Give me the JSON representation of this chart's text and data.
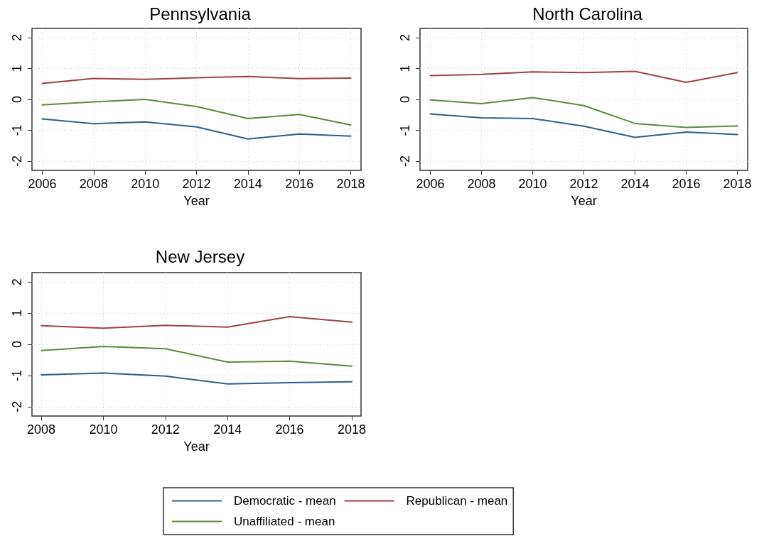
{
  "chart_data": [
    {
      "type": "line",
      "title": "Pennsylvania",
      "xlabel": "Year",
      "x": [
        2006,
        2008,
        2010,
        2012,
        2014,
        2016,
        2018
      ],
      "xlim": [
        2005.6,
        2018.4
      ],
      "xticks": [
        2006,
        2008,
        2010,
        2012,
        2014,
        2016,
        2018
      ],
      "ylim": [
        -2.3,
        2.3
      ],
      "yticks": [
        -2,
        -1,
        0,
        1,
        2
      ],
      "grid": true,
      "legend": false,
      "marker": "none",
      "line_style": "solid",
      "series": [
        {
          "color": "#2e5f8a",
          "values": [
            -0.63,
            -0.79,
            -0.73,
            -0.89,
            -1.28,
            -1.12,
            -1.19
          ]
        },
        {
          "color": "#a0404a",
          "values": [
            0.52,
            0.68,
            0.65,
            0.7,
            0.74,
            0.67,
            0.69
          ]
        },
        {
          "color": "#5b8a3c",
          "values": [
            -0.18,
            -0.08,
            0,
            -0.23,
            -0.62,
            -0.49,
            -0.83
          ]
        }
      ]
    },
    {
      "type": "line",
      "title": "North Carolina",
      "xlabel": "Year",
      "x": [
        2006,
        2008,
        2010,
        2012,
        2014,
        2016,
        2018
      ],
      "xlim": [
        2005.6,
        2018.4
      ],
      "xticks": [
        2006,
        2008,
        2010,
        2012,
        2014,
        2016,
        2018
      ],
      "ylim": [
        -2.3,
        2.3
      ],
      "yticks": [
        -2,
        -1,
        0,
        1,
        2
      ],
      "grid": true,
      "legend": false,
      "marker": "none",
      "line_style": "solid",
      "series": [
        {
          "color": "#2e5f8a",
          "values": [
            -0.47,
            -0.6,
            -0.62,
            -0.87,
            -1.23,
            -1.06,
            -1.14
          ]
        },
        {
          "color": "#a0404a",
          "values": [
            0.77,
            0.81,
            0.89,
            0.87,
            0.91,
            0.55,
            0.87
          ]
        },
        {
          "color": "#5b8a3c",
          "values": [
            -0.02,
            -0.14,
            0.06,
            -0.2,
            -0.78,
            -0.91,
            -0.86
          ]
        }
      ]
    },
    {
      "type": "line",
      "title": "New Jersey",
      "xlabel": "Year",
      "x": [
        2008,
        2010,
        2012,
        2014,
        2016,
        2018
      ],
      "xlim": [
        2007.7,
        2018.3
      ],
      "xticks": [
        2008,
        2010,
        2012,
        2014,
        2016,
        2018
      ],
      "ylim": [
        -2.3,
        2.3
      ],
      "yticks": [
        -2,
        -1,
        0,
        1,
        2
      ],
      "grid": true,
      "legend": "bottom",
      "marker": "none",
      "line_style": "solid",
      "series": [
        {
          "name": "Democratic - mean",
          "color": "#2e5f8a",
          "values": [
            -0.98,
            -0.92,
            -1.02,
            -1.27,
            -1.23,
            -1.2
          ]
        },
        {
          "name": "Republican - mean",
          "color": "#a0404a",
          "values": [
            0.6,
            0.52,
            0.61,
            0.55,
            0.89,
            0.71
          ]
        },
        {
          "name": "Unaffiliated - mean",
          "color": "#5b8a3c",
          "values": [
            -0.2,
            -0.07,
            -0.14,
            -0.57,
            -0.54,
            -0.7
          ]
        }
      ]
    }
  ]
}
